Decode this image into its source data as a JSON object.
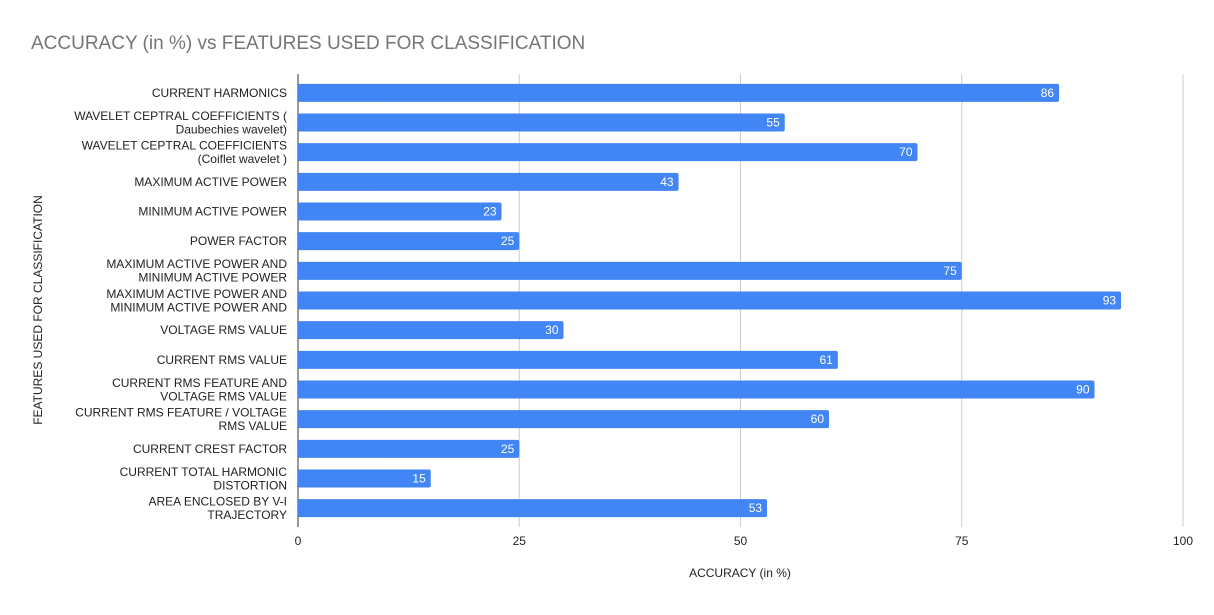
{
  "chart_data": {
    "type": "bar",
    "orientation": "horizontal",
    "title": "ACCURACY (in %) vs FEATURES USED FOR CLASSIFICATION",
    "xlabel": "ACCURACY (in %)",
    "ylabel": "FEATURES USED FOR CLASSIFICATION",
    "xlim": [
      0,
      100
    ],
    "xticks": [
      0,
      25,
      50,
      75,
      100
    ],
    "tick_labels": [
      "0",
      "25",
      "50",
      "75",
      "100"
    ],
    "grid": true,
    "legend": "none",
    "bar_color": "#4285f4",
    "categories": [
      [
        "CURRENT HARMONICS"
      ],
      [
        "WAVELET CEPTRAL COEFFICIENTS (",
        "Daubechies wavelet)"
      ],
      [
        "WAVELET CEPTRAL COEFFICIENTS",
        "(Coiflet wavelet )"
      ],
      [
        "MAXIMUM ACTIVE POWER"
      ],
      [
        "MINIMUM ACTIVE POWER"
      ],
      [
        "POWER FACTOR"
      ],
      [
        "MAXIMUM ACTIVE POWER AND",
        "MINIMUM ACTIVE POWER"
      ],
      [
        "MAXIMUM ACTIVE POWER AND",
        "MINIMUM ACTIVE POWER AND"
      ],
      [
        "VOLTAGE RMS VALUE"
      ],
      [
        "CURRENT RMS VALUE"
      ],
      [
        "CURRENT RMS FEATURE  AND",
        "VOLTAGE RMS VALUE"
      ],
      [
        "CURRENT RMS FEATURE / VOLTAGE",
        "RMS VALUE"
      ],
      [
        "CURRENT CREST FACTOR"
      ],
      [
        "CURRENT TOTAL HARMONIC",
        "DISTORTION"
      ],
      [
        "AREA ENCLOSED BY  V-I",
        "TRAJECTORY"
      ]
    ],
    "values": [
      86,
      55,
      70,
      43,
      23,
      25,
      75,
      93,
      30,
      61,
      90,
      60,
      25,
      15,
      53
    ],
    "value_labels": [
      "86",
      "55",
      "70",
      "43",
      "23",
      "25",
      "75",
      "93",
      "30",
      "61",
      "90",
      "60",
      "25",
      "15",
      "53"
    ]
  }
}
